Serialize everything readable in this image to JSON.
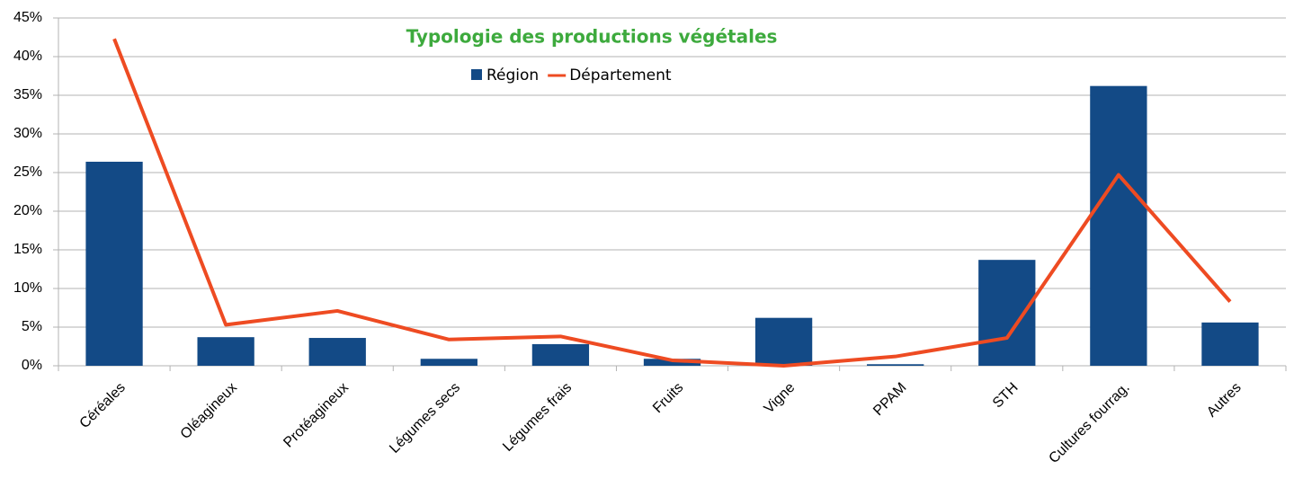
{
  "chart_data": {
    "type": "bar_line",
    "title": "Typologie des productions végétales",
    "categories": [
      "Céréales",
      "Oléagineux",
      "Protéagineux",
      "Légumes secs",
      "Légumes frais",
      "Fruits",
      "Vigne",
      "PPAM",
      "STH",
      "Cultures fourrag.",
      "Autres"
    ],
    "series": [
      {
        "name": "Région",
        "type": "bar",
        "color": "#134a86",
        "values": [
          26.4,
          3.7,
          3.6,
          0.9,
          2.8,
          0.9,
          6.2,
          0.2,
          13.7,
          36.2,
          5.6
        ]
      },
      {
        "name": "Département",
        "type": "line",
        "color": "#ee4b22",
        "values": [
          42.3,
          5.3,
          7.1,
          3.4,
          3.8,
          0.7,
          0,
          1.2,
          3.6,
          24.7,
          8.3
        ]
      }
    ],
    "ylim": [
      0,
      45
    ],
    "yticks": [
      {
        "value": 0,
        "label": "0%"
      },
      {
        "value": 5,
        "label": "5%"
      },
      {
        "value": 10,
        "label": "10%"
      },
      {
        "value": 15,
        "label": "15%"
      },
      {
        "value": 20,
        "label": "20%"
      },
      {
        "value": 25,
        "label": "25%"
      },
      {
        "value": 30,
        "label": "30%"
      },
      {
        "value": 35,
        "label": "35%"
      },
      {
        "value": 40,
        "label": "40%"
      },
      {
        "value": 45,
        "label": "45%"
      }
    ],
    "grid": true
  }
}
